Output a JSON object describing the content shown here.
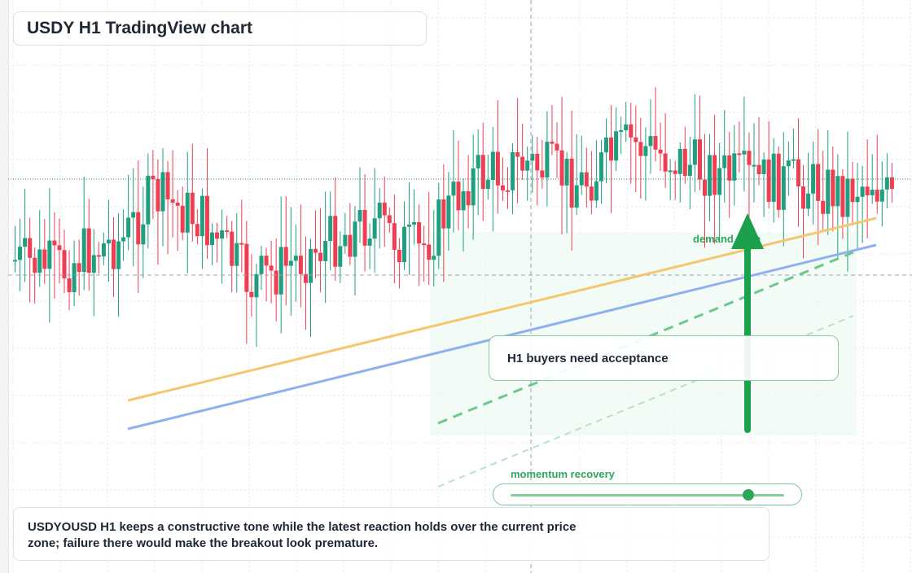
{
  "header": {
    "title": "USDY H1 TradingView chart"
  },
  "annotations": {
    "callout": "H1 buyers need acceptance",
    "zone_label": "demand zone",
    "momentum_label": "momentum recovery",
    "momentum_level": 0.87
  },
  "footnote": {
    "text": "USDYOUSD H1 keeps a constructive tone while the latest reaction holds over the current price zone; failure there would make the breakout look premature."
  },
  "colors": {
    "bull": "#1f9f7f",
    "bear": "#ef3e52",
    "trend_orange": "#f6c66e",
    "trend_blue": "#8fb0ee",
    "channel_green": "#6cc98a",
    "arrow_green": "#1ba04c",
    "grid": "#e2e6ee"
  },
  "chart_data": {
    "type": "candlestick",
    "timeframe": "H1",
    "series_count": 179,
    "grid": true,
    "ylim": [
      0,
      100
    ]
  }
}
